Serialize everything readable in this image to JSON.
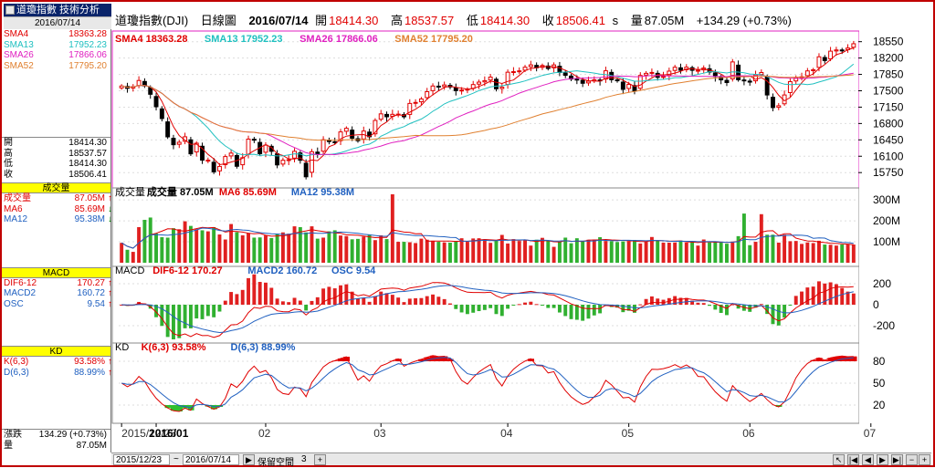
{
  "header": {
    "tab_label": "道瓊指數 技術分析",
    "date": "2016/07/14",
    "title_parts": [
      "道瓊指數(DJI)",
      "日線圖",
      "2016/07/14"
    ],
    "open_label": "開",
    "open": "18414.30",
    "high_label": "高",
    "high": "18537.57",
    "low_label": "低",
    "low": "18414.30",
    "close_label": "收",
    "close": "18506.41",
    "s": "s",
    "vol_label": "量",
    "vol": "87.05M",
    "change": "+134.29 (+0.73%)"
  },
  "left": {
    "sma": [
      {
        "k": "SMA4",
        "v": "18363.28",
        "color": "#e00000"
      },
      {
        "k": "SMA13",
        "v": "17952.23",
        "color": "#20c0c0"
      },
      {
        "k": "SMA26",
        "v": "17866.06",
        "color": "#e020c0"
      },
      {
        "k": "SMA52",
        "v": "17795.20",
        "color": "#e08030"
      }
    ],
    "ohlc": [
      {
        "k": "開",
        "v": "18414.30"
      },
      {
        "k": "高",
        "v": "18537.57"
      },
      {
        "k": "低",
        "v": "18414.30"
      },
      {
        "k": "收",
        "v": "18506.41"
      }
    ],
    "vol_head": "成交量",
    "vol": [
      {
        "k": "成交量",
        "v": "87.05M",
        "color": "#e00000",
        "arr": "↑"
      },
      {
        "k": "MA6",
        "v": "85.69M",
        "color": "#e00000",
        "arr": "↓"
      },
      {
        "k": "MA12",
        "v": "95.38M",
        "color": "#2060c0",
        "arr": "↓"
      }
    ],
    "macd_head": "MACD",
    "macd": [
      {
        "k": "DIF6-12",
        "v": "170.27",
        "color": "#e00000",
        "arr": "↑"
      },
      {
        "k": "MACD2",
        "v": "160.72",
        "color": "#2060c0",
        "arr": "↑"
      },
      {
        "k": "OSC",
        "v": "9.54",
        "color": "#2060c0",
        "arr": "↑"
      }
    ],
    "kd_head": "KD",
    "kd": [
      {
        "k": "K(6,3)",
        "v": "93.58%",
        "color": "#e00000",
        "arr": "↑"
      },
      {
        "k": "D(6,3)",
        "v": "88.99%",
        "color": "#2060c0",
        "arr": "↑"
      }
    ],
    "bottom": [
      {
        "k": "漲跌",
        "v": "134.29 (+0.73%)"
      },
      {
        "k": "量",
        "v": "87.05M"
      }
    ]
  },
  "legend": {
    "price": [
      {
        "t": "SMA4 18363.28",
        "color": "#e00000"
      },
      {
        "t": "SMA13 17952.23",
        "color": "#20c0c0"
      },
      {
        "t": "SMA26 17866.06",
        "color": "#e020c0"
      },
      {
        "t": "SMA52 17795.20",
        "color": "#e08030"
      }
    ],
    "vol": [
      {
        "t": "成交量",
        "color": "#000000"
      },
      {
        "t": "成交量 87.05M",
        "color": "#000000"
      },
      {
        "t": "MA6 85.69M",
        "color": "#e00000"
      },
      {
        "t": "MA12 95.38M",
        "color": "#2060c0"
      }
    ],
    "macd": [
      {
        "t": "MACD",
        "color": "#000000"
      },
      {
        "t": "DIF6-12 170.27",
        "color": "#e00000"
      },
      {
        "t": "MACD2 160.72",
        "color": "#2060c0"
      },
      {
        "t": "OSC 9.54",
        "color": "#2060c0"
      }
    ],
    "kd": [
      {
        "t": "KD",
        "color": "#000000"
      },
      {
        "t": "K(6,3) 93.58%",
        "color": "#e00000"
      },
      {
        "t": "D(6,3) 88.99%",
        "color": "#2060c0"
      }
    ]
  },
  "axes": {
    "price_ticks": [
      18550,
      18200,
      17850,
      17500,
      17150,
      16800,
      16450,
      16100,
      15750
    ],
    "price_range": [
      15500,
      18700
    ],
    "vol_ticks": [
      "300M",
      "200M",
      "100M"
    ],
    "vol_tick_values": [
      300,
      200,
      100
    ],
    "vol_range": [
      0,
      340
    ],
    "macd_ticks": [
      "200",
      "0",
      "-200"
    ],
    "macd_tick_values": [
      200,
      0,
      -200
    ],
    "macd_range": [
      -330,
      330
    ],
    "kd_ticks": [
      "80",
      "50",
      "20"
    ],
    "kd_tick_values": [
      80,
      50,
      20
    ],
    "kd_range": [
      0,
      100
    ],
    "x_labels": [
      {
        "t": "2015/12/23",
        "i": 0,
        "bold": false
      },
      {
        "t": "2016/01",
        "i": 6,
        "bold": true
      },
      {
        "t": "02",
        "i": 25,
        "bold": false
      },
      {
        "t": "03",
        "i": 45,
        "bold": false
      },
      {
        "t": "04",
        "i": 67,
        "bold": false
      },
      {
        "t": "05",
        "i": 88,
        "bold": false
      },
      {
        "t": "06",
        "i": 109,
        "bold": false
      },
      {
        "t": "07",
        "i": 130,
        "bold": false
      }
    ]
  },
  "bottombar": {
    "from": "2015/12/23",
    "tilde": "~",
    "to": "2016/07/14",
    "keep_label": "保留空間",
    "keep_val": "3"
  },
  "chart_data": {
    "type": "candlestick",
    "close": [
      17602,
      17552,
      17590,
      17720,
      17603,
      17425,
      17158,
      16906,
      16514,
      16346,
      16399,
      16516,
      16151,
      16379,
      16016,
      16016,
      15766,
      15882,
      16093,
      16167,
      15885,
      16069,
      16466,
      16449,
      16153,
      16336,
      16205,
      15914,
      16015,
      16027,
      16205,
      16014,
      15660,
      16196,
      16154,
      16453,
      16413,
      16392,
      16620,
      16697,
      16485,
      16431,
      16639,
      16516,
      16865,
      17006,
      16944,
      16996,
      17000,
      16943,
      17229,
      17251,
      17325,
      17481,
      17602,
      17582,
      17624,
      17582,
      17503,
      17515,
      17535,
      17633,
      17685,
      17716,
      17792,
      17541,
      17577,
      17897,
      17909,
      17926,
      18004,
      18054,
      17992,
      18041,
      17977,
      18053,
      17891,
      17830,
      17750,
      17740,
      17660,
      17705,
      17735,
      17711,
      17928,
      17736,
      17720,
      17530,
      17636,
      17492,
      17828,
      17873,
      17892,
      17787,
      17807,
      17920,
      18003,
      17938,
      18005,
      17938,
      17938,
      17986,
      17899,
      17805,
      17733,
      17676,
      18117,
      17735,
      17712,
      17685,
      17840,
      17890,
      17410,
      17140,
      17180,
      17410,
      17695,
      17780,
      17800,
      17925,
      17950,
      18226,
      18146,
      18347,
      18373,
      18372,
      18414,
      18506
    ],
    "volume": [
      95,
      62,
      52,
      170,
      205,
      216,
      140,
      122,
      120,
      165,
      160,
      198,
      176,
      160,
      155,
      150,
      170,
      135,
      111,
      185,
      146,
      131,
      140,
      120,
      121,
      130,
      118,
      139,
      145,
      139,
      174,
      170,
      145,
      174,
      115,
      120,
      150,
      155,
      130,
      127,
      112,
      114,
      125,
      134,
      108,
      131,
      113,
      327,
      100,
      100,
      98,
      94,
      115,
      110,
      105,
      100,
      97,
      96,
      104,
      117,
      100,
      116,
      117,
      112,
      95,
      107,
      133,
      92,
      113,
      104,
      107,
      82,
      110,
      119,
      107,
      76,
      101,
      120,
      93,
      117,
      105,
      110,
      110,
      122,
      104,
      103,
      99,
      102,
      104,
      109,
      92,
      102,
      123,
      107,
      96,
      96,
      97,
      106,
      96,
      101,
      82,
      111,
      97,
      101,
      100,
      91,
      97,
      127,
      235,
      84,
      100,
      232,
      134,
      134,
      96,
      134,
      103,
      104,
      90,
      97,
      94,
      105,
      87,
      86,
      82,
      87,
      87,
      87
    ]
  }
}
